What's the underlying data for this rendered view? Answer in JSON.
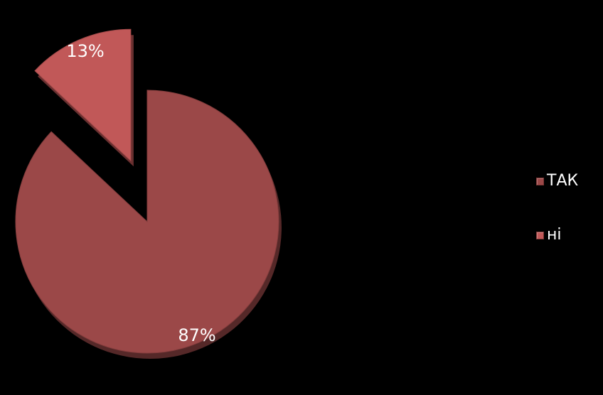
{
  "chart_data": {
    "type": "pie",
    "categories": [
      "ТАК",
      "ні"
    ],
    "values": [
      87,
      13
    ],
    "value_labels": [
      "87%",
      "13%"
    ],
    "colors": [
      "#9b4848",
      "#c15858"
    ],
    "exploded": [
      false,
      true
    ],
    "legend_position": "right"
  },
  "legend": {
    "items": [
      {
        "label": "ТАК",
        "color": "#9b4848"
      },
      {
        "label": "ні",
        "color": "#c15858"
      }
    ]
  }
}
